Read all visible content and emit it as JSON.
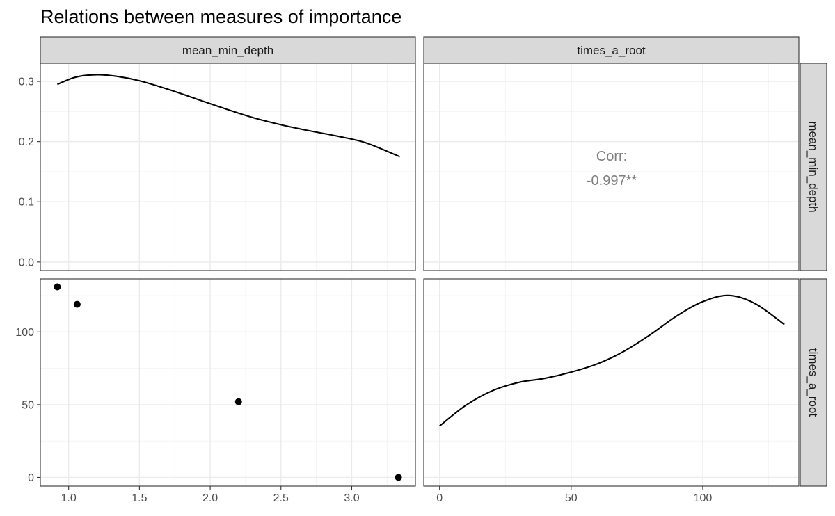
{
  "chart_data": {
    "type": "scatter",
    "title": "Relations between measures of importance",
    "variables": [
      "mean_min_depth",
      "times_a_root"
    ],
    "axes": {
      "mean_min_depth": {
        "range": [
          0.8,
          3.45
        ],
        "ticks": [
          1.0,
          1.5,
          2.0,
          2.5,
          3.0
        ],
        "tick_labels": [
          "1.0",
          "1.5",
          "2.0",
          "2.5",
          "3.0"
        ]
      },
      "times_a_root": {
        "range": [
          -6,
          136.5
        ],
        "ticks": [
          0,
          50,
          100
        ],
        "tick_labels": [
          "0",
          "50",
          "100"
        ]
      },
      "density_y": {
        "range": [
          -0.014,
          0.33
        ],
        "ticks": [
          0.0,
          0.1,
          0.2,
          0.3
        ],
        "tick_labels": [
          "0.0",
          "0.1",
          "0.2",
          "0.3"
        ]
      }
    },
    "panels": {
      "density_mean_min_depth": {
        "x": [
          0.92,
          1.05,
          1.2,
          1.35,
          1.5,
          1.7,
          1.9,
          2.1,
          2.3,
          2.5,
          2.7,
          2.9,
          3.1,
          3.34
        ],
        "y": [
          0.295,
          0.307,
          0.311,
          0.308,
          0.301,
          0.287,
          0.271,
          0.255,
          0.24,
          0.228,
          0.218,
          0.209,
          0.198,
          0.175
        ]
      },
      "correlation": {
        "label": "Corr:",
        "value": "-0.997**"
      },
      "scatter": {
        "points": [
          {
            "mean_min_depth": 0.92,
            "times_a_root": 131
          },
          {
            "mean_min_depth": 1.06,
            "times_a_root": 119
          },
          {
            "mean_min_depth": 2.2,
            "times_a_root": 52
          },
          {
            "mean_min_depth": 3.33,
            "times_a_root": 0
          }
        ]
      },
      "density_times_a_root": {
        "x": [
          0,
          10,
          20,
          30,
          40,
          50,
          60,
          70,
          80,
          90,
          100,
          110,
          120,
          131
        ],
        "y_frac": [
          0.29,
          0.39,
          0.46,
          0.5,
          0.52,
          0.55,
          0.59,
          0.65,
          0.73,
          0.82,
          0.89,
          0.92,
          0.88,
          0.78
        ]
      }
    },
    "grid": true,
    "legend": "none"
  },
  "strips": {
    "top": [
      "mean_min_depth",
      "times_a_root"
    ],
    "right": [
      "mean_min_depth",
      "times_a_root"
    ]
  }
}
